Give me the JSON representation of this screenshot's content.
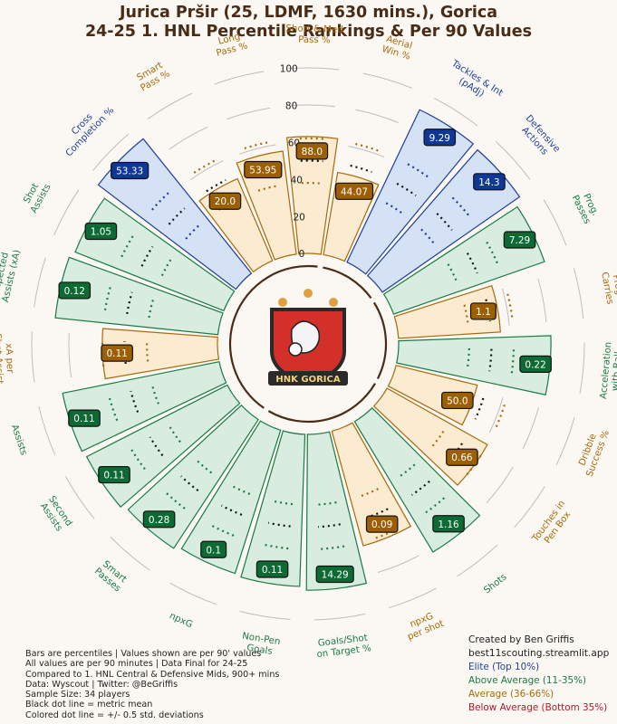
{
  "title": {
    "line1": "Jurica Pršir (25, LDMF, 1630 mins.), Gorica",
    "line2": "24-25 1. HNL Percentile Rankings & Per 90 Values"
  },
  "footnotes": [
    "Bars are percentiles | Values shown are per 90' values",
    "All values are per 90 minutes | Data Final for 24-25",
    "Compared to 1. HNL Central & Defensive Mids, 900+ mins",
    "Data: Wyscout | Twitter: @BeGriffis",
    "Sample Size: 34 players",
    "Black dot line = metric mean",
    "Colored dot line = +/- 0.5 std. deviations"
  ],
  "credit": {
    "line1": "Created by Ben Griffis",
    "line2": "best11scouting.streamlit.app"
  },
  "legend": [
    {
      "label": "Elite (Top 10%)",
      "color": "#1d3f99"
    },
    {
      "label": "Above Average (11-35%)",
      "color": "#1a7a45"
    },
    {
      "label": "Average (36-66%)",
      "color": "#a66a0a"
    },
    {
      "label": "Below Average (Bottom 35%)",
      "color": "#b3182a"
    }
  ],
  "logo": {
    "text": "HNK GORICA"
  },
  "tiers": {
    "elite": {
      "fill": "#d5e1f4",
      "edge": "#1d3f99",
      "label": "#1d3f99",
      "box": "#0e3797"
    },
    "above": {
      "fill": "#d8eddf",
      "edge": "#1a7a45",
      "label": "#1a7a45",
      "box": "#0d6a33"
    },
    "average": {
      "fill": "#fbecd1",
      "edge": "#a66a0a",
      "label": "#a66a0a",
      "box": "#9c5f06"
    }
  },
  "chart_data": {
    "type": "radial-bar",
    "r_ticks": [
      0,
      20,
      40,
      60,
      80,
      100
    ],
    "rlim": [
      0,
      100
    ],
    "metrics": [
      {
        "label": "Aerial\nWin %",
        "percentile": 45,
        "value": "44.07",
        "tier": "average"
      },
      {
        "label": "Tackles & Int\n(pAdj)",
        "percentile": 91,
        "value": "9.29",
        "tier": "elite"
      },
      {
        "label": "Defensive\nActions",
        "percentile": 90,
        "value": "14.3",
        "tier": "elite"
      },
      {
        "label": "Prog.\nPasses",
        "percentile": 86,
        "value": "7.29",
        "tier": "above"
      },
      {
        "label": "Prog.\nCarries",
        "percentile": 55,
        "value": "1.1",
        "tier": "average"
      },
      {
        "label": "Acceleration\nwith Ball",
        "percentile": 82,
        "value": "0.22",
        "tier": "above"
      },
      {
        "label": "Dribble\nSuccess %",
        "percentile": 45,
        "value": "50.0",
        "tier": "average"
      },
      {
        "label": "Touches in\nPen Box",
        "percentile": 62,
        "value": "0.66",
        "tier": "average"
      },
      {
        "label": "Shots",
        "percentile": 82,
        "value": "1.16",
        "tier": "above"
      },
      {
        "label": "npxG\nper shot",
        "percentile": 64,
        "value": "0.09",
        "tier": "average"
      },
      {
        "label": "Goals/Shot\non Target %",
        "percentile": 84,
        "value": "14.29",
        "tier": "above"
      },
      {
        "label": "Non-Pen\nGoals",
        "percentile": 82,
        "value": "0.11",
        "tier": "above"
      },
      {
        "label": "npxG",
        "percentile": 81,
        "value": "0.1",
        "tier": "above"
      },
      {
        "label": "Smart\nPasses",
        "percentile": 83,
        "value": "0.28",
        "tier": "above"
      },
      {
        "label": "Second\nAssists",
        "percentile": 85,
        "value": "0.11",
        "tier": "above"
      },
      {
        "label": "Assists",
        "percentile": 86,
        "value": "0.11",
        "tier": "above"
      },
      {
        "label": "xA per\nShot Assist",
        "percentile": 62,
        "value": "0.11",
        "tier": "average"
      },
      {
        "label": "Expected\nAssists (xA)",
        "percentile": 88,
        "value": "0.12",
        "tier": "above"
      },
      {
        "label": "Shot\nAssists",
        "percentile": 86,
        "value": "1.05",
        "tier": "above"
      },
      {
        "label": "Cross\nCompletion %",
        "percentile": 93,
        "value": "53.33",
        "tier": "elite"
      },
      {
        "label": "Smart\nPass %",
        "percentile": 48,
        "value": "20.0",
        "tier": "average"
      },
      {
        "label": "Long\nPass %",
        "percentile": 56,
        "value": "53.95",
        "tier": "average"
      },
      {
        "label": "Short & Med\nPass %",
        "percentile": 63,
        "value": "88.0",
        "tier": "average"
      }
    ]
  }
}
